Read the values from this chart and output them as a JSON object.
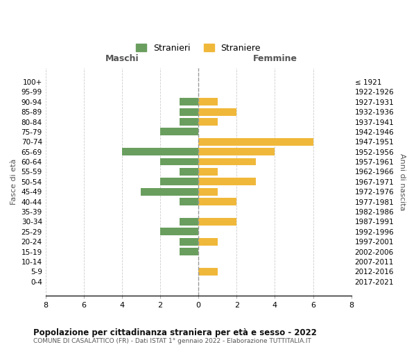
{
  "age_groups": [
    "100+",
    "95-99",
    "90-94",
    "85-89",
    "80-84",
    "75-79",
    "70-74",
    "65-69",
    "60-64",
    "55-59",
    "50-54",
    "45-49",
    "40-44",
    "35-39",
    "30-34",
    "25-29",
    "20-24",
    "15-19",
    "10-14",
    "5-9",
    "0-4"
  ],
  "birth_years": [
    "≤ 1921",
    "1922-1926",
    "1927-1931",
    "1932-1936",
    "1937-1941",
    "1942-1946",
    "1947-1951",
    "1952-1956",
    "1957-1961",
    "1962-1966",
    "1967-1971",
    "1972-1976",
    "1977-1981",
    "1982-1986",
    "1987-1991",
    "1992-1996",
    "1997-2001",
    "2002-2006",
    "2007-2011",
    "2012-2016",
    "2017-2021"
  ],
  "maschi": [
    0,
    0,
    1,
    1,
    1,
    2,
    0,
    4,
    2,
    1,
    2,
    3,
    1,
    0,
    1,
    2,
    1,
    1,
    0,
    0,
    0
  ],
  "femmine": [
    0,
    0,
    1,
    2,
    1,
    0,
    6,
    4,
    3,
    1,
    3,
    1,
    2,
    0,
    2,
    0,
    1,
    0,
    0,
    1,
    0
  ],
  "color_maschi": "#6a9e5e",
  "color_femmine": "#f0b83a",
  "color_grid": "#cccccc",
  "color_zero_line": "#999999",
  "xlim": 8,
  "title": "Popolazione per cittadinanza straniera per età e sesso - 2022",
  "subtitle": "COMUNE DI CASALATTICO (FR) - Dati ISTAT 1° gennaio 2022 - Elaborazione TUTTITALIA.IT",
  "ylabel_left": "Fasce di età",
  "ylabel_right": "Anni di nascita",
  "label_maschi": "Stranieri",
  "label_femmine": "Straniere",
  "header_maschi": "Maschi",
  "header_femmine": "Femmine",
  "bar_height": 0.75,
  "background_color": "#ffffff"
}
